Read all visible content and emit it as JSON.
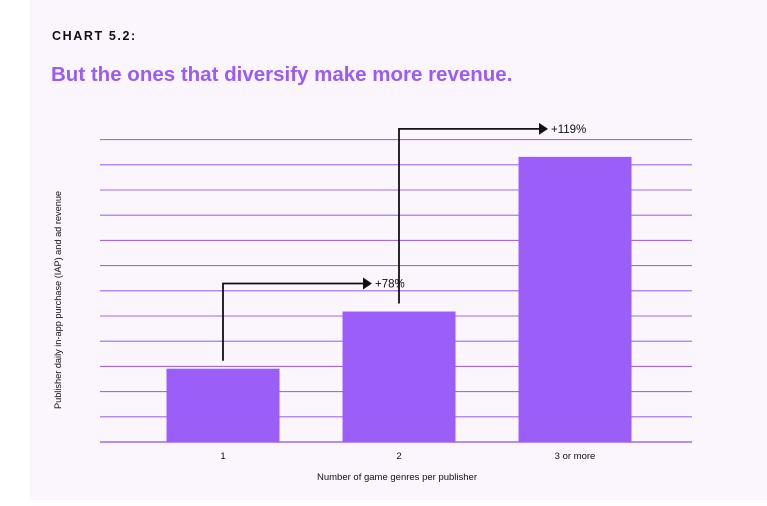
{
  "header": {
    "kicker": "CHART 5.2:",
    "title": "But the ones that diversify make more revenue."
  },
  "colors": {
    "bar": "#9b5ef9",
    "grid": "#9d6af0",
    "title": "#9a5cf5",
    "annotation": "#111111"
  },
  "chart_data": {
    "type": "bar",
    "categories": [
      "1",
      "2",
      "3 or more"
    ],
    "values": [
      1,
      1.78,
      3.89
    ],
    "xlabel": "Number of game genres per publisher",
    "ylabel": "Publisher daily in-app purchase (IAP) and ad revenue",
    "ylim": [
      0,
      4.12
    ],
    "grid": true,
    "annotations": [
      {
        "from": "1",
        "to": "2",
        "label": "+78%"
      },
      {
        "from": "2",
        "to": "3 or more",
        "label": "+119%"
      }
    ]
  }
}
